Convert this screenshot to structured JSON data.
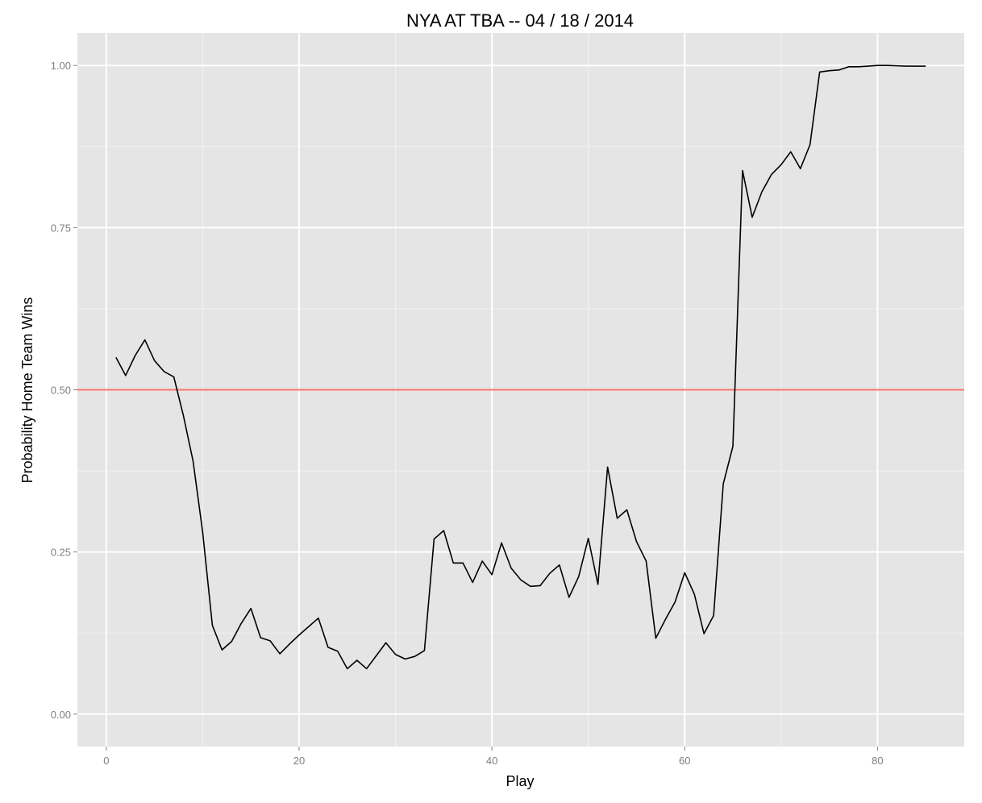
{
  "chart_data": {
    "type": "line",
    "title": "NYA AT TBA -- 04 / 18 / 2014",
    "xlabel": "Play",
    "ylabel": "Probability Home Team Wins",
    "xlim": [
      -3,
      89
    ],
    "ylim": [
      -0.05,
      1.05
    ],
    "x_ticks": [
      0,
      20,
      40,
      60,
      80
    ],
    "x_tick_labels": [
      "0",
      "20",
      "40",
      "60",
      "80"
    ],
    "y_ticks": [
      0,
      0.25,
      0.5,
      0.75,
      1
    ],
    "y_tick_labels": [
      "0.00",
      "0.25",
      "0.50",
      "0.75",
      "1.00"
    ],
    "grid": true,
    "legend": "none",
    "reference_line": {
      "y": 0.5,
      "color": "#F8766D"
    },
    "series": [
      {
        "color": "#000000",
        "x": [
          1,
          2,
          3,
          4,
          5,
          6,
          7,
          8,
          9,
          10,
          11,
          12,
          13,
          14,
          15,
          16,
          17,
          18,
          19,
          20,
          21,
          22,
          23,
          24,
          25,
          26,
          27,
          28,
          29,
          30,
          31,
          32,
          33,
          34,
          35,
          36,
          37,
          38,
          39,
          40,
          41,
          42,
          43,
          44,
          45,
          46,
          47,
          48,
          49,
          50,
          51,
          52,
          53,
          54,
          55,
          56,
          57,
          58,
          59,
          60,
          61,
          62,
          63,
          64,
          65,
          66,
          67,
          68,
          69,
          70,
          71,
          72,
          73,
          74,
          75,
          76,
          77,
          78,
          79,
          80,
          81,
          82,
          83,
          84,
          85
        ],
        "values": [
          0.55,
          0.522,
          0.553,
          0.577,
          0.545,
          0.528,
          0.52,
          0.46,
          0.39,
          0.28,
          0.137,
          0.099,
          0.112,
          0.14,
          0.163,
          0.118,
          0.113,
          0.093,
          0.108,
          0.122,
          0.135,
          0.148,
          0.103,
          0.097,
          0.07,
          0.083,
          0.07,
          0.09,
          0.11,
          0.092,
          0.085,
          0.089,
          0.098,
          0.27,
          0.283,
          0.233,
          0.233,
          0.203,
          0.236,
          0.215,
          0.264,
          0.225,
          0.207,
          0.197,
          0.198,
          0.217,
          0.23,
          0.18,
          0.212,
          0.271,
          0.2,
          0.381,
          0.302,
          0.315,
          0.266,
          0.236,
          0.117,
          0.146,
          0.173,
          0.218,
          0.185,
          0.124,
          0.152,
          0.355,
          0.413,
          0.838,
          0.766,
          0.805,
          0.832,
          0.847,
          0.867,
          0.841,
          0.878,
          0.99,
          0.992,
          0.993,
          0.998,
          0.998,
          0.999,
          1.0,
          1.0,
          0.9995,
          0.999,
          0.999,
          0.999
        ]
      }
    ]
  },
  "colors": {
    "panel_background": "#E5E5E5",
    "grid_major": "#FFFFFF",
    "grid_minor": "#F2F2F2",
    "line": "#000000",
    "reference_line": "#F8766D",
    "tick_text": "#7F7F7F",
    "tick_mark": "#7F7F7F"
  }
}
